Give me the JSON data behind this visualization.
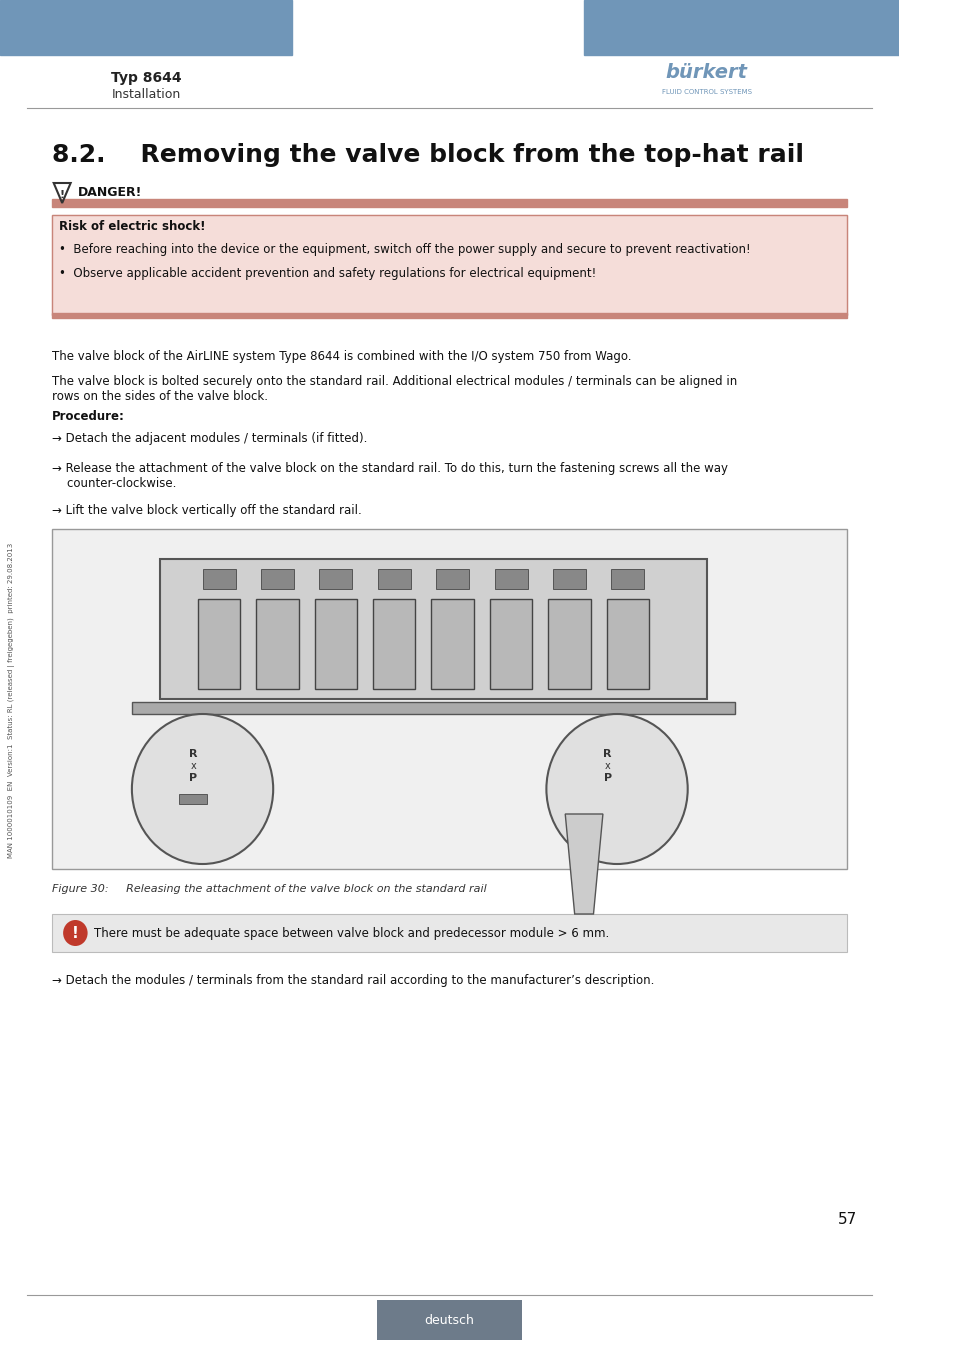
{
  "title": "8.2.    Removing the valve block from the top-hat rail",
  "header_blue": "#7096b8",
  "typ_text": "Typ 8644",
  "installation_text": "Installation",
  "danger_title": "DANGER!",
  "danger_bar_color": "#c8857a",
  "danger_bg_color": "#f5ddd9",
  "danger_border_color": "#c8857a",
  "risk_text": "Risk of electric shock!",
  "bullet1": "•  Before reaching into the device or the equipment, switch off the power supply and secure to prevent reactivation!",
  "bullet2": "•  Observe applicable accident prevention and safety regulations for electrical equipment!",
  "para1": "The valve block of the AirLINE system Type 8644 is combined with the I/O system 750 from Wago.",
  "para2": "The valve block is bolted securely onto the standard rail. Additional electrical modules / terminals can be aligned in\nrows on the sides of the valve block.",
  "procedure_title": "Procedure:",
  "arrow1": "→ Detach the adjacent modules / terminals (if fitted).",
  "arrow2": "→ Release the attachment of the valve block on the standard rail. To do this, turn the fastening screws all the way\n    counter-clockwise.",
  "arrow3": "→ Lift the valve block vertically off the standard rail.",
  "figure_caption": "Figure 30:     Releasing the attachment of the valve block on the standard rail",
  "notice_text": "There must be adequate space between valve block and predecessor module > 6 mm.",
  "notice_icon_color": "#c0392b",
  "notice_bg_color": "#e8e8e8",
  "arrow4": "→ Detach the modules / terminals from the standard rail according to the manufacturer’s description.",
  "page_number": "57",
  "footer_text": "deutsch",
  "footer_bg": "#6d7b8a",
  "sidebar_text": "MAN 1000010109  EN  Version:1  Status: RL (released | freigegeben)  printed: 29.08.2013",
  "bg_color": "#ffffff",
  "text_color": "#1a1a1a",
  "line_color": "#aaaaaa",
  "title_font_size": 18,
  "body_font_size": 8.5,
  "small_font_size": 7
}
